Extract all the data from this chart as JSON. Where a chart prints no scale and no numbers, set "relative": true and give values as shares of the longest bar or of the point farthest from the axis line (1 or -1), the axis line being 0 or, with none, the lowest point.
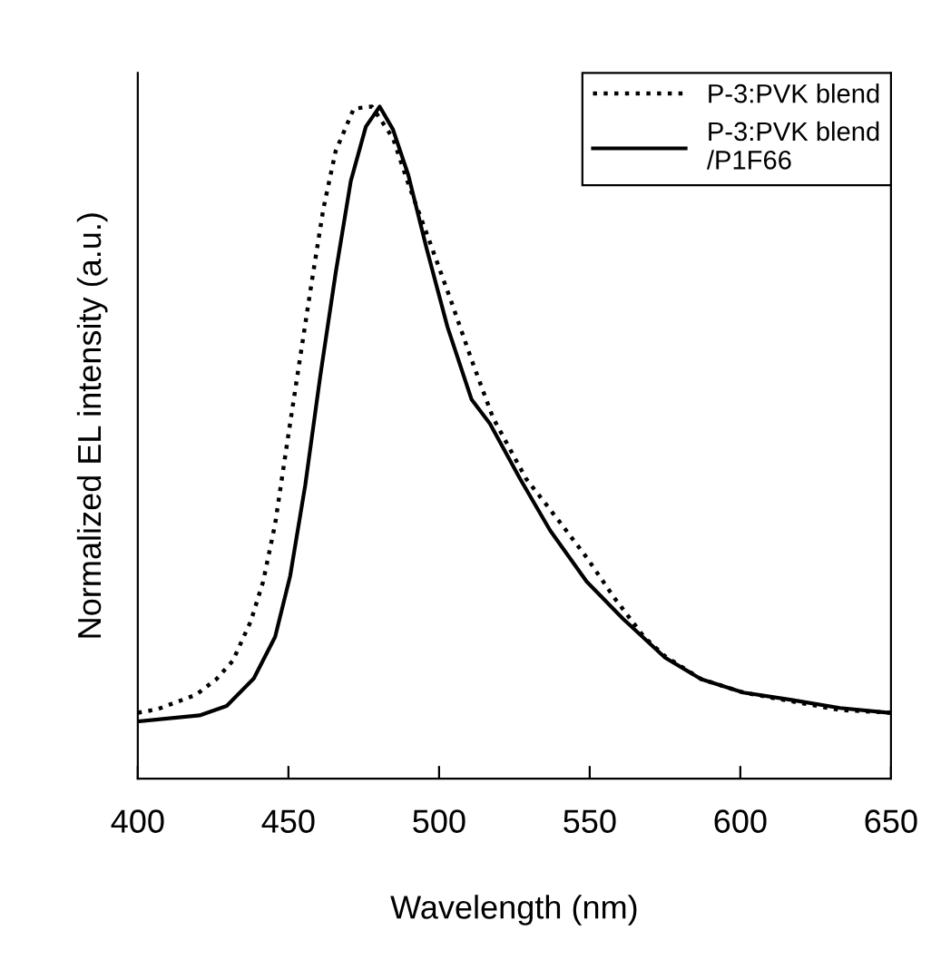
{
  "chart_data": {
    "type": "line",
    "relative": true,
    "xlabel": "Wavelength (nm)",
    "ylabel": "Normalized EL intensity (a.u.)",
    "xlim": [
      400,
      650
    ],
    "xticks": [
      400,
      450,
      500,
      550,
      600,
      650
    ],
    "grid": false,
    "legend": "top right",
    "marker": "none",
    "series": [
      {
        "name": "P-3:PVK blend",
        "color": "#000000",
        "line_style": "dotted",
        "x": [
          400,
          406.4,
          419.5,
          426.1,
          431.5,
          437.5,
          441.6,
          445.6,
          449.6,
          453.6,
          457.6,
          461.6,
          465.7,
          471.7,
          477.7,
          484.7,
          489.8,
          496.8,
          503.8,
          510.8,
          517.9,
          528.9,
          539,
          549,
          558,
          568,
          575,
          587,
          601,
          617,
          633,
          650
        ],
        "values": [
          0.098,
          0.103,
          0.125,
          0.148,
          0.175,
          0.234,
          0.293,
          0.379,
          0.5,
          0.618,
          0.735,
          0.848,
          0.934,
          0.997,
          1.0,
          0.953,
          0.885,
          0.8,
          0.713,
          0.623,
          0.537,
          0.446,
          0.388,
          0.329,
          0.27,
          0.211,
          0.182,
          0.148,
          0.128,
          0.115,
          0.102,
          0.098
        ]
      },
      {
        "name": "P-3:PVK blend\n/P1F66",
        "color": "#000000",
        "line_style": "solid",
        "x": [
          400,
          420.5,
          429.5,
          438.5,
          445.6,
          450.6,
          455.6,
          460.6,
          465.7,
          470.7,
          475.7,
          480.3,
          484.7,
          489.8,
          495.8,
          502.8,
          510.8,
          516.9,
          526.9,
          536.9,
          549,
          561,
          575,
          587,
          601,
          617,
          633,
          649
        ],
        "values": [
          0.085,
          0.094,
          0.108,
          0.149,
          0.211,
          0.302,
          0.437,
          0.6,
          0.753,
          0.889,
          0.97,
          1.0,
          0.966,
          0.898,
          0.79,
          0.672,
          0.564,
          0.528,
          0.446,
          0.369,
          0.293,
          0.238,
          0.18,
          0.148,
          0.128,
          0.117,
          0.105,
          0.098
        ]
      }
    ]
  }
}
